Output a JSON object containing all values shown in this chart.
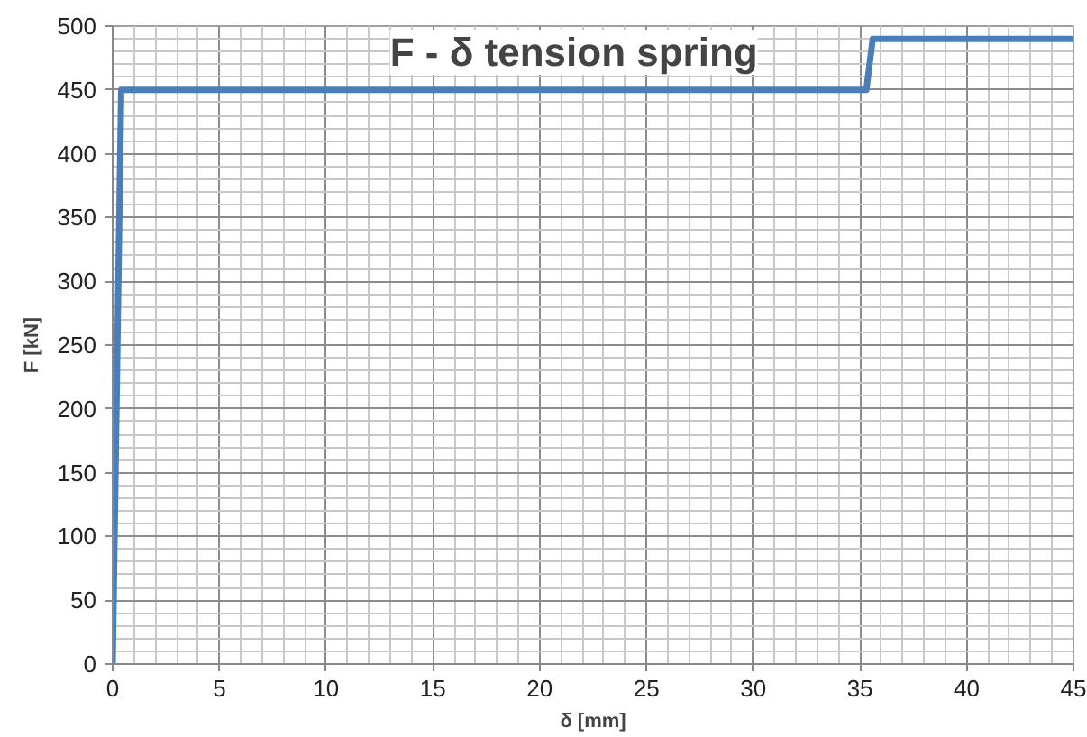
{
  "chart_data": {
    "type": "line",
    "title": "F - δ tension spring",
    "xlabel": "δ [mm]",
    "ylabel": "F [kN]",
    "series": [
      {
        "color": "#4a7ebb",
        "x": [
          0,
          0.4,
          35.3,
          35.6,
          45
        ],
        "values": [
          0,
          450,
          450,
          490,
          490
        ]
      }
    ],
    "xlim": [
      0,
      45
    ],
    "xticks": [
      0,
      5,
      10,
      15,
      20,
      25,
      30,
      35,
      40,
      45
    ],
    "ylim": [
      0,
      500
    ],
    "yticks": [
      0,
      50,
      100,
      150,
      200,
      250,
      300,
      350,
      400,
      450,
      500
    ],
    "grid": true,
    "marker": "none",
    "line_style": "solid"
  }
}
